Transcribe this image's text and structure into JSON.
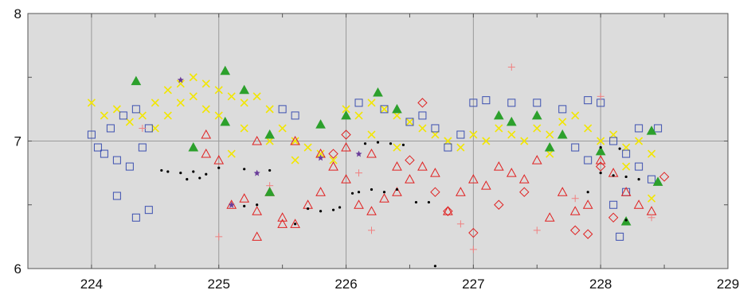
{
  "chart_data": {
    "type": "scatter",
    "title": "",
    "xlabel": "",
    "ylabel": "",
    "xlim": [
      223.5,
      229
    ],
    "ylim": [
      6,
      8
    ],
    "x_ticks": [
      224,
      225,
      226,
      227,
      228,
      229
    ],
    "x_tick_labels": [
      "224",
      "225",
      "226",
      "227",
      "228",
      "229"
    ],
    "y_ticks": [
      6,
      7,
      8
    ],
    "y_tick_labels": [
      "6",
      "7",
      "8"
    ],
    "grid": true,
    "legend": "none",
    "background_color": "#dcdcdc",
    "series": [
      {
        "marker": "x",
        "color": "#f2e600",
        "points": [
          [
            224.0,
            7.3
          ],
          [
            224.1,
            7.2
          ],
          [
            224.2,
            7.25
          ],
          [
            224.3,
            7.15
          ],
          [
            224.4,
            7.2
          ],
          [
            224.5,
            7.3
          ],
          [
            224.6,
            7.4
          ],
          [
            224.7,
            7.45
          ],
          [
            224.8,
            7.5
          ],
          [
            224.9,
            7.45
          ],
          [
            225.0,
            7.4
          ],
          [
            225.1,
            7.35
          ],
          [
            225.2,
            7.3
          ],
          [
            225.3,
            7.35
          ],
          [
            225.4,
            7.25
          ],
          [
            225.5,
            7.1
          ],
          [
            225.6,
            7.0
          ],
          [
            225.7,
            6.95
          ],
          [
            225.8,
            6.9
          ],
          [
            225.9,
            6.85
          ],
          [
            226.0,
            7.25
          ],
          [
            226.1,
            7.2
          ],
          [
            226.2,
            7.3
          ],
          [
            226.3,
            7.25
          ],
          [
            226.4,
            7.2
          ],
          [
            226.5,
            7.15
          ],
          [
            226.6,
            7.1
          ],
          [
            226.7,
            7.05
          ],
          [
            226.8,
            7.0
          ],
          [
            226.9,
            6.95
          ],
          [
            227.0,
            7.05
          ],
          [
            227.1,
            7.0
          ],
          [
            227.2,
            7.1
          ],
          [
            227.3,
            7.05
          ],
          [
            227.4,
            7.0
          ],
          [
            227.5,
            7.1
          ],
          [
            227.6,
            7.05
          ],
          [
            227.7,
            7.15
          ],
          [
            227.8,
            7.2
          ],
          [
            227.9,
            7.1
          ],
          [
            228.0,
            7.0
          ],
          [
            228.1,
            7.05
          ],
          [
            228.2,
            6.95
          ],
          [
            228.3,
            7.0
          ],
          [
            228.4,
            6.9
          ],
          [
            224.6,
            7.2
          ],
          [
            224.7,
            7.3
          ],
          [
            224.8,
            7.35
          ],
          [
            224.9,
            7.25
          ],
          [
            225.0,
            7.2
          ],
          [
            225.2,
            7.1
          ],
          [
            225.4,
            7.0
          ],
          [
            225.6,
            6.85
          ],
          [
            226.2,
            7.05
          ],
          [
            226.4,
            6.95
          ],
          [
            227.6,
            6.9
          ],
          [
            228.2,
            6.8
          ],
          [
            228.4,
            6.55
          ],
          [
            224.5,
            7.1
          ],
          [
            225.1,
            6.9
          ]
        ]
      },
      {
        "marker": "open-square",
        "color": "#3b4fb0",
        "points": [
          [
            224.0,
            7.05
          ],
          [
            224.05,
            6.95
          ],
          [
            224.1,
            6.9
          ],
          [
            224.15,
            7.1
          ],
          [
            224.2,
            6.85
          ],
          [
            224.25,
            7.2
          ],
          [
            224.3,
            6.8
          ],
          [
            224.35,
            7.25
          ],
          [
            224.4,
            6.95
          ],
          [
            224.45,
            7.1
          ],
          [
            224.2,
            6.57
          ],
          [
            224.35,
            6.4
          ],
          [
            224.45,
            6.46
          ],
          [
            226.5,
            7.15
          ],
          [
            226.6,
            7.2
          ],
          [
            226.7,
            7.1
          ],
          [
            227.0,
            7.3
          ],
          [
            227.1,
            7.32
          ],
          [
            227.3,
            7.3
          ],
          [
            227.5,
            7.3
          ],
          [
            227.7,
            7.25
          ],
          [
            227.9,
            7.32
          ],
          [
            228.0,
            7.3
          ],
          [
            228.1,
            7.0
          ],
          [
            228.2,
            6.9
          ],
          [
            228.3,
            6.8
          ],
          [
            228.4,
            6.7
          ],
          [
            228.45,
            7.1
          ],
          [
            228.3,
            7.1
          ],
          [
            228.2,
            6.6
          ],
          [
            227.9,
            6.85
          ],
          [
            227.8,
            6.95
          ],
          [
            228.1,
            6.5
          ],
          [
            228.15,
            6.25
          ],
          [
            226.9,
            7.05
          ],
          [
            226.8,
            6.95
          ],
          [
            225.5,
            7.25
          ],
          [
            225.6,
            7.2
          ],
          [
            226.1,
            7.3
          ],
          [
            226.3,
            7.25
          ]
        ]
      },
      {
        "marker": "open-triangle",
        "color": "#e02020",
        "points": [
          [
            224.9,
            6.9
          ],
          [
            225.0,
            6.85
          ],
          [
            225.1,
            6.5
          ],
          [
            225.2,
            6.55
          ],
          [
            225.3,
            6.45
          ],
          [
            225.4,
            6.6
          ],
          [
            225.5,
            6.4
          ],
          [
            225.6,
            6.35
          ],
          [
            225.7,
            6.5
          ],
          [
            225.8,
            6.6
          ],
          [
            225.9,
            6.8
          ],
          [
            226.0,
            6.7
          ],
          [
            226.1,
            6.5
          ],
          [
            226.2,
            6.45
          ],
          [
            226.3,
            6.55
          ],
          [
            226.4,
            6.6
          ],
          [
            226.5,
            6.7
          ],
          [
            226.6,
            6.8
          ],
          [
            226.7,
            6.75
          ],
          [
            226.8,
            6.45
          ],
          [
            226.9,
            6.6
          ],
          [
            227.0,
            6.7
          ],
          [
            227.1,
            6.65
          ],
          [
            227.2,
            6.8
          ],
          [
            227.3,
            6.75
          ],
          [
            227.4,
            6.7
          ],
          [
            227.5,
            6.85
          ],
          [
            227.6,
            6.4
          ],
          [
            227.7,
            6.6
          ],
          [
            227.8,
            6.45
          ],
          [
            227.9,
            6.5
          ],
          [
            228.0,
            6.85
          ],
          [
            228.1,
            6.75
          ],
          [
            228.2,
            6.6
          ],
          [
            228.3,
            6.5
          ],
          [
            228.4,
            6.45
          ],
          [
            225.3,
            6.25
          ],
          [
            225.5,
            6.35
          ],
          [
            226.0,
            6.95
          ],
          [
            226.2,
            6.9
          ],
          [
            225.8,
            6.9
          ],
          [
            225.6,
            7.0
          ],
          [
            226.4,
            6.8
          ],
          [
            224.9,
            7.05
          ],
          [
            225.3,
            7.0
          ]
        ]
      },
      {
        "marker": "open-diamond",
        "color": "#e02020",
        "points": [
          [
            226.6,
            7.3
          ],
          [
            226.7,
            6.6
          ],
          [
            226.8,
            6.45
          ],
          [
            227.0,
            6.28
          ],
          [
            227.2,
            6.5
          ],
          [
            227.8,
            6.3
          ],
          [
            227.9,
            6.27
          ],
          [
            228.0,
            6.8
          ],
          [
            228.5,
            6.72
          ],
          [
            226.0,
            7.05
          ],
          [
            225.9,
            6.9
          ],
          [
            226.5,
            6.85
          ],
          [
            227.4,
            6.6
          ],
          [
            228.1,
            6.4
          ]
        ]
      },
      {
        "marker": "plus",
        "color": "#f08080",
        "points": [
          [
            225.0,
            6.25
          ],
          [
            226.9,
            6.35
          ],
          [
            227.0,
            6.15
          ],
          [
            227.3,
            7.58
          ],
          [
            227.5,
            6.3
          ],
          [
            228.0,
            7.35
          ],
          [
            228.4,
            6.4
          ],
          [
            225.4,
            6.65
          ],
          [
            226.2,
            6.3
          ],
          [
            227.8,
            6.55
          ],
          [
            224.4,
            7.1
          ],
          [
            226.1,
            6.75
          ]
        ]
      },
      {
        "marker": "filled-triangle",
        "color": "#2ca02c",
        "points": [
          [
            224.35,
            7.47
          ],
          [
            225.05,
            7.55
          ],
          [
            225.2,
            7.4
          ],
          [
            225.05,
            7.15
          ],
          [
            225.4,
            7.05
          ],
          [
            225.8,
            7.13
          ],
          [
            226.0,
            7.2
          ],
          [
            226.25,
            7.38
          ],
          [
            226.4,
            7.25
          ],
          [
            227.2,
            7.2
          ],
          [
            227.3,
            7.15
          ],
          [
            227.5,
            7.2
          ],
          [
            227.6,
            6.95
          ],
          [
            227.7,
            7.05
          ],
          [
            228.0,
            6.92
          ],
          [
            228.2,
            6.37
          ],
          [
            228.4,
            7.08
          ],
          [
            228.45,
            6.68
          ],
          [
            225.4,
            6.6
          ],
          [
            224.8,
            6.95
          ]
        ]
      },
      {
        "marker": "small-dot",
        "color": "#000000",
        "points": [
          [
            224.55,
            6.77
          ],
          [
            224.6,
            6.76
          ],
          [
            224.7,
            6.75
          ],
          [
            224.8,
            6.76
          ],
          [
            224.9,
            6.74
          ],
          [
            224.75,
            6.7
          ],
          [
            224.85,
            6.71
          ],
          [
            225.1,
            6.5
          ],
          [
            225.2,
            6.49
          ],
          [
            225.3,
            6.5
          ],
          [
            225.6,
            6.35
          ],
          [
            225.7,
            6.47
          ],
          [
            225.8,
            6.45
          ],
          [
            225.9,
            6.46
          ],
          [
            225.95,
            6.48
          ],
          [
            226.05,
            6.59
          ],
          [
            226.1,
            6.6
          ],
          [
            226.2,
            6.62
          ],
          [
            226.3,
            6.6
          ],
          [
            226.4,
            6.62
          ],
          [
            226.15,
            6.98
          ],
          [
            226.25,
            6.99
          ],
          [
            226.35,
            6.98
          ],
          [
            226.45,
            6.97
          ],
          [
            226.55,
            6.52
          ],
          [
            226.65,
            6.52
          ],
          [
            226.7,
            6.02
          ],
          [
            228.0,
            6.75
          ],
          [
            228.1,
            6.73
          ],
          [
            228.2,
            6.72
          ],
          [
            228.3,
            6.7
          ],
          [
            228.0,
            6.95
          ],
          [
            228.15,
            6.94
          ],
          [
            227.9,
            6.6
          ],
          [
            228.2,
            6.38
          ],
          [
            225.0,
            6.79
          ],
          [
            225.2,
            6.78
          ],
          [
            225.4,
            6.77
          ]
        ]
      },
      {
        "marker": "star",
        "color": "#6a3d9a",
        "points": [
          [
            224.7,
            7.48
          ],
          [
            225.1,
            6.5
          ],
          [
            225.3,
            6.75
          ],
          [
            226.1,
            6.9
          ],
          [
            225.8,
            6.87
          ]
        ]
      }
    ]
  }
}
